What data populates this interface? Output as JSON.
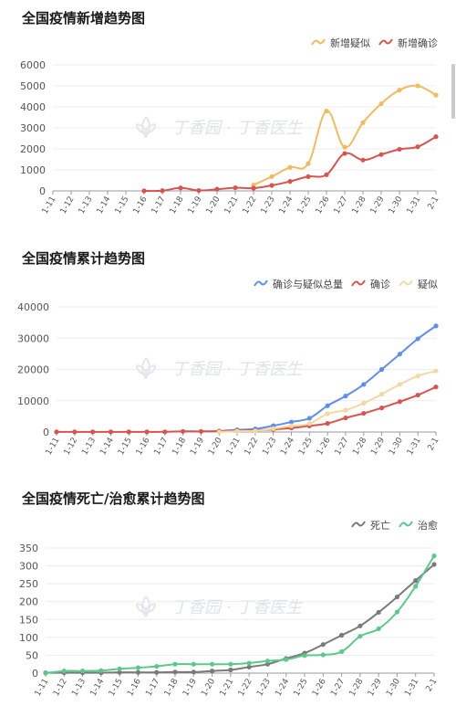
{
  "chart_data": [
    {
      "type": "line",
      "title": "全国疫情新增趋势图",
      "watermark": "丁香园 · 丁香医生",
      "categories": [
        "1-11",
        "1-12",
        "1-13",
        "1-14",
        "1-15",
        "1-16",
        "1-17",
        "1-18",
        "1-19",
        "1-20",
        "1-21",
        "1-22",
        "1-23",
        "1-24",
        "1-25",
        "1-26",
        "1-27",
        "1-28",
        "1-29",
        "1-30",
        "1-31",
        "2-1"
      ],
      "ylim": [
        0,
        6000
      ],
      "yticks": [
        0,
        1000,
        2000,
        3000,
        4000,
        5000,
        6000
      ],
      "legend_position": "top-right",
      "grid": true,
      "series": [
        {
          "name": "新增疑似",
          "color": "#f0bc5e",
          "values": [
            null,
            null,
            null,
            null,
            null,
            null,
            null,
            null,
            null,
            null,
            null,
            280,
            680,
            1120,
            1300,
            3800,
            2080,
            3250,
            4150,
            4800,
            5000,
            4560
          ]
        },
        {
          "name": "新增确诊",
          "color": "#d9534f",
          "values": [
            null,
            null,
            null,
            null,
            null,
            0,
            10,
            140,
            20,
            80,
            150,
            130,
            260,
            450,
            680,
            770,
            1780,
            1470,
            1730,
            1980,
            2100,
            2580
          ]
        }
      ]
    },
    {
      "type": "line",
      "title": "全国疫情累计趋势图",
      "watermark": "丁香园 · 丁香医生",
      "categories": [
        "1-11",
        "1-12",
        "1-13",
        "1-14",
        "1-15",
        "1-16",
        "1-17",
        "1-18",
        "1-19",
        "1-20",
        "1-21",
        "1-22",
        "1-23",
        "1-24",
        "1-25",
        "1-26",
        "1-27",
        "1-28",
        "1-29",
        "1-30",
        "1-31",
        "2-1"
      ],
      "ylim": [
        0,
        40000
      ],
      "yticks": [
        0,
        10000,
        20000,
        30000,
        40000
      ],
      "legend_position": "top-right",
      "grid": true,
      "series": [
        {
          "name": "确诊与疑似总量",
          "color": "#5b8ff0",
          "values": [
            null,
            null,
            null,
            null,
            null,
            null,
            null,
            null,
            null,
            300,
            700,
            1000,
            2000,
            3200,
            4400,
            8400,
            11500,
            15200,
            20000,
            24900,
            29800,
            33900
          ]
        },
        {
          "name": "确诊",
          "color": "#d9534f",
          "values": [
            40,
            40,
            40,
            40,
            40,
            40,
            60,
            200,
            200,
            290,
            440,
            570,
            830,
            1290,
            1970,
            2740,
            4500,
            5970,
            7700,
            9700,
            11800,
            14400
          ]
        },
        {
          "name": "疑似",
          "color": "#f3d9a0",
          "values": [
            null,
            null,
            null,
            null,
            null,
            null,
            null,
            null,
            null,
            30,
            250,
            390,
            1070,
            1960,
            2680,
            5800,
            6970,
            9200,
            12100,
            15200,
            17900,
            19500
          ]
        }
      ]
    },
    {
      "type": "line",
      "title": "全国疫情死亡/治愈累计趋势图",
      "watermark": "丁香园 · 丁香医生",
      "categories": [
        "1-11",
        "1-12",
        "1-13",
        "1-14",
        "1-15",
        "1-16",
        "1-17",
        "1-18",
        "1-19",
        "1-20",
        "1-21",
        "1-22",
        "1-23",
        "1-24",
        "1-25",
        "1-26",
        "1-27",
        "1-28",
        "1-29",
        "1-30",
        "1-31",
        "2-1"
      ],
      "ylim": [
        0,
        350
      ],
      "yticks": [
        0,
        50,
        100,
        150,
        200,
        250,
        300,
        350
      ],
      "legend_position": "top-right",
      "grid": true,
      "series": [
        {
          "name": "死亡",
          "color": "#7a7a7a",
          "values": [
            1,
            1,
            1,
            1,
            2,
            2,
            2,
            3,
            3,
            6,
            9,
            17,
            25,
            41,
            56,
            80,
            106,
            132,
            170,
            213,
            259,
            304
          ]
        },
        {
          "name": "治愈",
          "color": "#5cc98a",
          "values": [
            0,
            6,
            6,
            7,
            12,
            15,
            19,
            25,
            25,
            25,
            25,
            28,
            34,
            38,
            49,
            51,
            60,
            103,
            124,
            171,
            243,
            328
          ]
        }
      ]
    }
  ]
}
